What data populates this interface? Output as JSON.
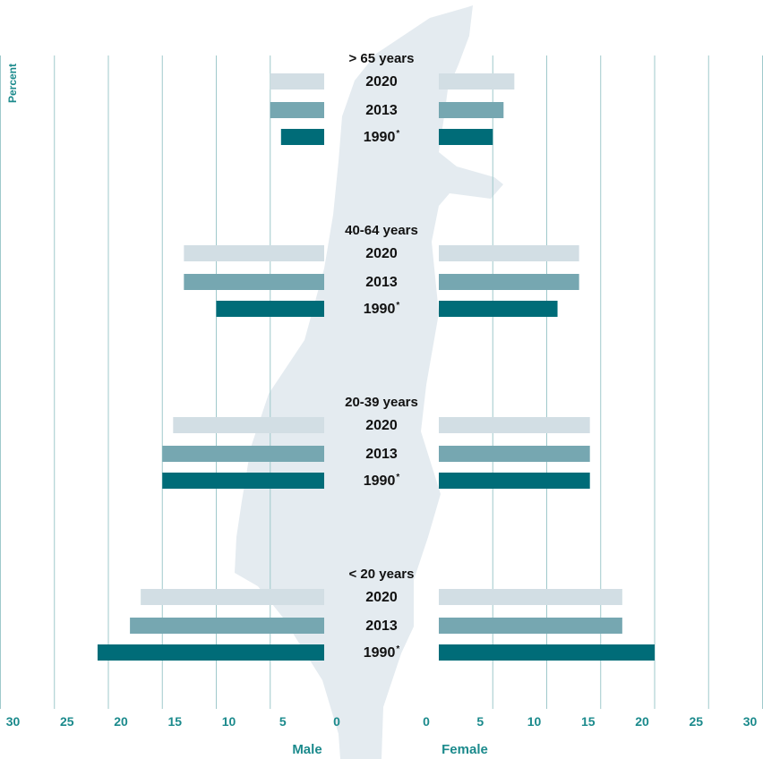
{
  "colors": {
    "accent": "#1b8a8c",
    "gridline": "#9fc9cb",
    "map_silhouette": "#e4ebf0",
    "series_2020": "#d2dee4",
    "series_2013": "#76a7b1",
    "series_1990": "#006c78"
  },
  "chart_data": {
    "type": "bar",
    "layout": "population-pyramid",
    "ylabel": "Percent",
    "xlabel_left": "Male",
    "xlabel_right": "Female",
    "x_ticks": [
      "30",
      "25",
      "20",
      "15",
      "10",
      "5",
      "0"
    ],
    "xlim": [
      0,
      30
    ],
    "grid": true,
    "background_image": "israel-map-silhouette",
    "groups": [
      {
        "label": "> 65 years",
        "bars": [
          {
            "year": "2020",
            "male": 5,
            "female": 7
          },
          {
            "year": "2013",
            "male": 5,
            "female": 6
          },
          {
            "year": "1990",
            "footnote": "*",
            "male": 4,
            "female": 5
          }
        ]
      },
      {
        "label": "40-64 years",
        "bars": [
          {
            "year": "2020",
            "male": 13,
            "female": 13
          },
          {
            "year": "2013",
            "male": 13,
            "female": 13
          },
          {
            "year": "1990",
            "footnote": "*",
            "male": 10,
            "female": 11
          }
        ]
      },
      {
        "label": "20-39 years",
        "bars": [
          {
            "year": "2020",
            "male": 14,
            "female": 14
          },
          {
            "year": "2013",
            "male": 15,
            "female": 14
          },
          {
            "year": "1990",
            "footnote": "*",
            "male": 15,
            "female": 14
          }
        ]
      },
      {
        "label": "< 20 years",
        "bars": [
          {
            "year": "2020",
            "male": 17,
            "female": 17
          },
          {
            "year": "2013",
            "male": 18,
            "female": 17
          },
          {
            "year": "1990",
            "footnote": "*",
            "male": 21,
            "female": 20
          }
        ]
      }
    ]
  }
}
